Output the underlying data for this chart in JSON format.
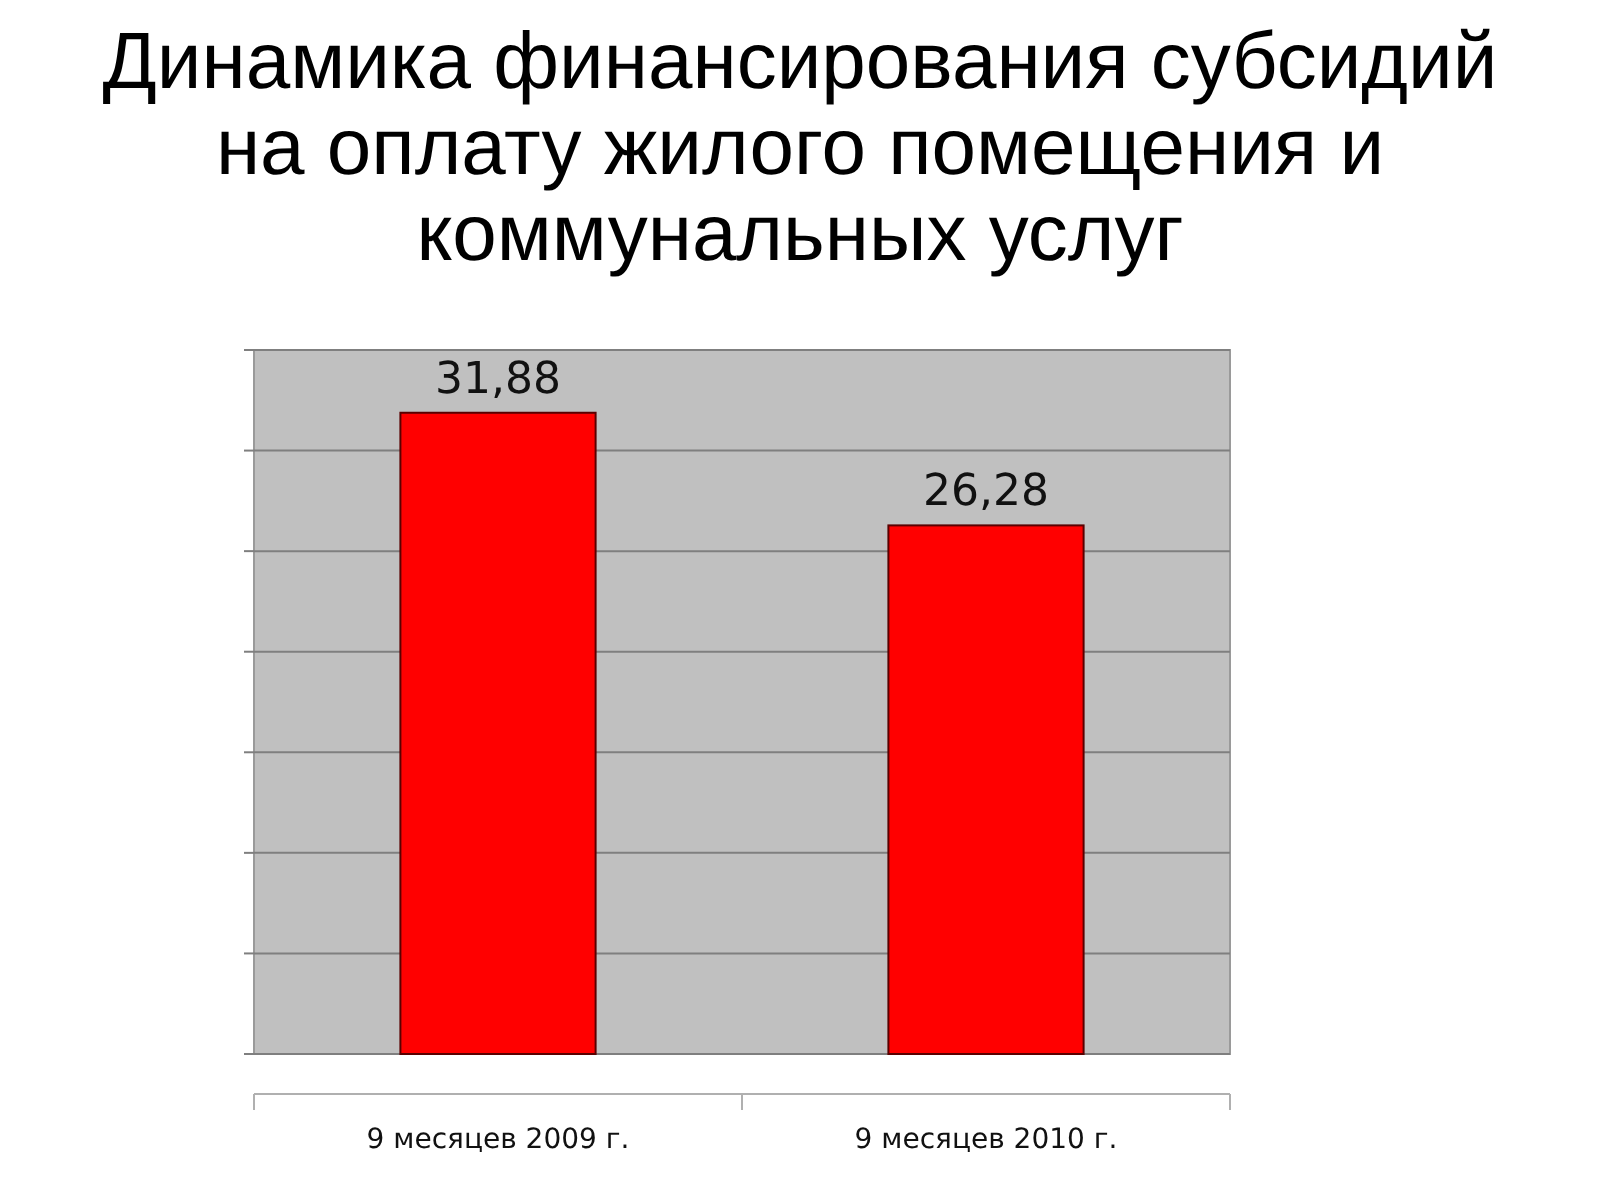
{
  "chart_data": {
    "type": "bar",
    "title": "Динамика финансирования субсидий на оплату жилого помещения и коммунальных услуг",
    "categories": [
      "9 месяцев 2009 г.",
      "9 месяцев 2010 г."
    ],
    "values": [
      31.88,
      26.28
    ],
    "value_labels": [
      "31,88",
      "26,28"
    ],
    "color": "#ff0000",
    "ylim": [
      0,
      35
    ],
    "yticks": [
      {
        "value": 0,
        "label": null
      },
      {
        "value": 5,
        "label": null
      },
      {
        "value": 10,
        "label": null
      },
      {
        "value": 15,
        "label": null
      },
      {
        "value": 20,
        "label": null
      },
      {
        "value": 25,
        "label": null
      },
      {
        "value": 30,
        "label": null
      },
      {
        "value": 35,
        "label": null
      }
    ],
    "grid": "y",
    "tick_labels": "x"
  }
}
